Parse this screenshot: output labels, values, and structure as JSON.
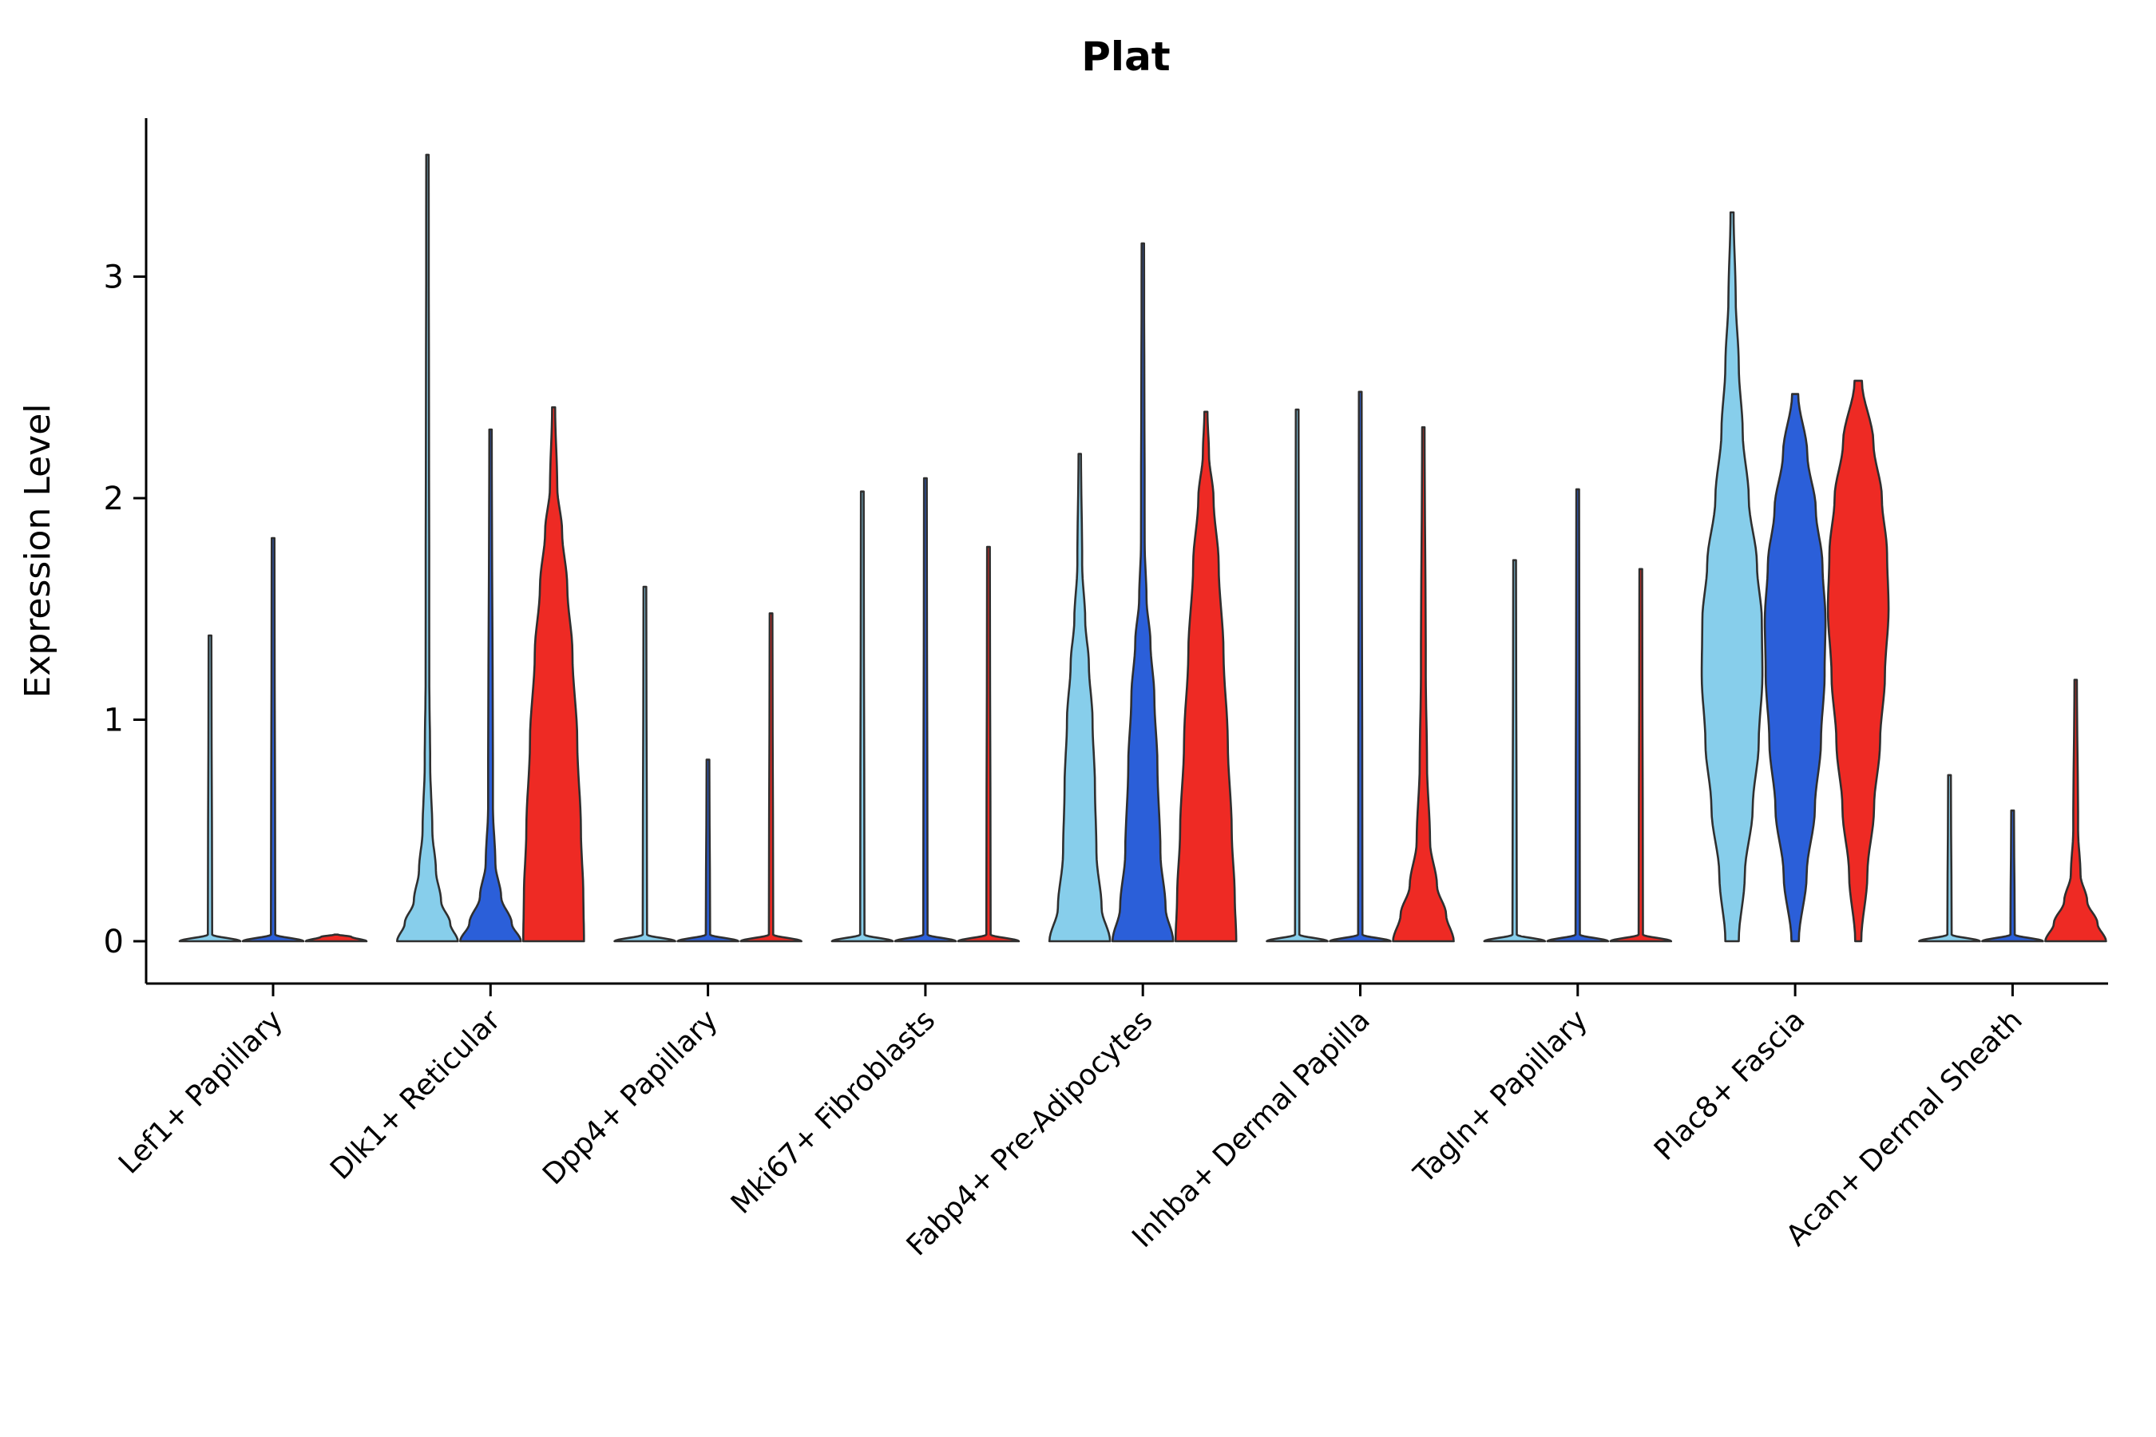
{
  "title": "Plat",
  "ylabel": "Expression Level",
  "chart_data": {
    "type": "violin",
    "title": "Plat",
    "xlabel": "",
    "ylabel": "Expression Level",
    "yticks": [
      0,
      1,
      2,
      3
    ],
    "ylim": [
      0,
      3.72
    ],
    "grid": false,
    "legend": "none",
    "series_colors": [
      "#87CEEB",
      "#2B5FD9",
      "#EE2A24"
    ],
    "stroke_color": "#2f2f2f",
    "axis_color": "#000000",
    "categories": [
      "Lef1+ Papillary",
      "Dlk1+ Reticular",
      "Dpp4+ Papillary",
      "Mki67+ Fibroblasts",
      "Fabp4+ Pre-Adipocytes",
      "Inhba+ Dermal Papilla",
      "Tagln+ Papillary",
      "Plac8+ Fascia",
      "Acan+ Dermal Sheath"
    ],
    "groups": [
      {
        "category": "Lef1+ Papillary",
        "violins": [
          {
            "max": 1.38,
            "shape": "spike",
            "profile": [
              [
                0,
                1.0
              ],
              [
                0.03,
                0.07
              ],
              [
                1.38,
                0.045
              ]
            ]
          },
          {
            "max": 1.82,
            "shape": "spike",
            "profile": [
              [
                0,
                1.0
              ],
              [
                0.03,
                0.07
              ],
              [
                1.82,
                0.045
              ]
            ]
          },
          {
            "max": 0.03,
            "shape": "flat",
            "profile": [
              [
                0,
                1.0
              ],
              [
                0.02,
                0.5
              ],
              [
                0.03,
                0.06
              ]
            ]
          }
        ]
      },
      {
        "category": "Dlk1+ Reticular",
        "violins": [
          {
            "max": 3.55,
            "shape": "body-spike",
            "profile": [
              [
                0,
                1.0
              ],
              [
                0.08,
                0.75
              ],
              [
                0.18,
                0.45
              ],
              [
                0.32,
                0.28
              ],
              [
                0.5,
                0.16
              ],
              [
                0.8,
                0.09
              ],
              [
                1.2,
                0.06
              ],
              [
                3.55,
                0.04
              ]
            ]
          },
          {
            "max": 2.31,
            "shape": "body-spike",
            "profile": [
              [
                0,
                1.0
              ],
              [
                0.08,
                0.7
              ],
              [
                0.2,
                0.35
              ],
              [
                0.35,
                0.16
              ],
              [
                0.6,
                0.08
              ],
              [
                2.31,
                0.04
              ]
            ]
          },
          {
            "max": 2.41,
            "shape": "body-spike",
            "profile": [
              [
                0,
                1.0
              ],
              [
                0.2,
                0.98
              ],
              [
                0.5,
                0.9
              ],
              [
                0.9,
                0.78
              ],
              [
                1.3,
                0.62
              ],
              [
                1.6,
                0.45
              ],
              [
                1.85,
                0.28
              ],
              [
                2.05,
                0.12
              ],
              [
                2.41,
                0.05
              ]
            ]
          }
        ]
      },
      {
        "category": "Dpp4+ Papillary",
        "violins": [
          {
            "max": 1.6,
            "shape": "spike",
            "profile": [
              [
                0,
                1.0
              ],
              [
                0.03,
                0.07
              ],
              [
                1.6,
                0.045
              ]
            ]
          },
          {
            "max": 0.82,
            "shape": "spike",
            "profile": [
              [
                0,
                1.0
              ],
              [
                0.03,
                0.07
              ],
              [
                0.82,
                0.045
              ]
            ]
          },
          {
            "max": 1.48,
            "shape": "spike",
            "profile": [
              [
                0,
                1.0
              ],
              [
                0.03,
                0.07
              ],
              [
                1.48,
                0.045
              ]
            ]
          }
        ]
      },
      {
        "category": "Mki67+ Fibroblasts",
        "violins": [
          {
            "max": 2.03,
            "shape": "spike",
            "profile": [
              [
                0,
                1.0
              ],
              [
                0.03,
                0.07
              ],
              [
                2.03,
                0.045
              ]
            ]
          },
          {
            "max": 2.09,
            "shape": "spike",
            "profile": [
              [
                0,
                1.0
              ],
              [
                0.03,
                0.07
              ],
              [
                2.09,
                0.045
              ]
            ]
          },
          {
            "max": 1.78,
            "shape": "spike",
            "profile": [
              [
                0,
                1.0
              ],
              [
                0.03,
                0.07
              ],
              [
                1.78,
                0.045
              ]
            ]
          }
        ]
      },
      {
        "category": "Fabp4+ Pre-Adipocytes",
        "violins": [
          {
            "max": 2.2,
            "shape": "body-spike",
            "profile": [
              [
                0,
                1.0
              ],
              [
                0.15,
                0.72
              ],
              [
                0.4,
                0.55
              ],
              [
                0.7,
                0.5
              ],
              [
                1.0,
                0.42
              ],
              [
                1.25,
                0.3
              ],
              [
                1.45,
                0.18
              ],
              [
                1.7,
                0.08
              ],
              [
                2.2,
                0.04
              ]
            ]
          },
          {
            "max": 3.15,
            "shape": "body-spike",
            "profile": [
              [
                0,
                1.0
              ],
              [
                0.15,
                0.75
              ],
              [
                0.4,
                0.58
              ],
              [
                0.8,
                0.48
              ],
              [
                1.1,
                0.38
              ],
              [
                1.35,
                0.25
              ],
              [
                1.55,
                0.12
              ],
              [
                1.8,
                0.06
              ],
              [
                3.15,
                0.04
              ]
            ]
          },
          {
            "max": 2.39,
            "shape": "body-spike",
            "profile": [
              [
                0,
                1.0
              ],
              [
                0.2,
                0.95
              ],
              [
                0.5,
                0.85
              ],
              [
                0.9,
                0.72
              ],
              [
                1.3,
                0.58
              ],
              [
                1.7,
                0.42
              ],
              [
                2.0,
                0.25
              ],
              [
                2.2,
                0.1
              ],
              [
                2.39,
                0.05
              ]
            ]
          }
        ]
      },
      {
        "category": "Inhba+ Dermal Papilla",
        "violins": [
          {
            "max": 2.4,
            "shape": "spike",
            "profile": [
              [
                0,
                1.0
              ],
              [
                0.03,
                0.07
              ],
              [
                2.4,
                0.045
              ]
            ]
          },
          {
            "max": 2.48,
            "shape": "spike",
            "profile": [
              [
                0,
                1.0
              ],
              [
                0.03,
                0.07
              ],
              [
                2.48,
                0.045
              ]
            ]
          },
          {
            "max": 2.32,
            "shape": "body-spike",
            "profile": [
              [
                0,
                1.0
              ],
              [
                0.12,
                0.75
              ],
              [
                0.25,
                0.45
              ],
              [
                0.45,
                0.22
              ],
              [
                0.8,
                0.12
              ],
              [
                1.2,
                0.08
              ],
              [
                2.32,
                0.04
              ]
            ]
          }
        ]
      },
      {
        "category": "Tagln+ Papillary",
        "violins": [
          {
            "max": 1.72,
            "shape": "spike",
            "profile": [
              [
                0,
                1.0
              ],
              [
                0.03,
                0.07
              ],
              [
                1.72,
                0.045
              ]
            ]
          },
          {
            "max": 2.04,
            "shape": "spike",
            "profile": [
              [
                0,
                1.0
              ],
              [
                0.03,
                0.07
              ],
              [
                2.04,
                0.045
              ]
            ]
          },
          {
            "max": 1.68,
            "shape": "spike",
            "profile": [
              [
                0,
                1.0
              ],
              [
                0.03,
                0.07
              ],
              [
                1.68,
                0.045
              ]
            ]
          }
        ]
      },
      {
        "category": "Plac8+ Fascia",
        "violins": [
          {
            "max": 3.29,
            "shape": "full",
            "profile": [
              [
                0,
                0.22
              ],
              [
                0.3,
                0.42
              ],
              [
                0.6,
                0.68
              ],
              [
                0.9,
                0.88
              ],
              [
                1.2,
                1.0
              ],
              [
                1.45,
                0.98
              ],
              [
                1.7,
                0.82
              ],
              [
                2.0,
                0.55
              ],
              [
                2.3,
                0.35
              ],
              [
                2.6,
                0.22
              ],
              [
                2.9,
                0.12
              ],
              [
                3.29,
                0.05
              ]
            ]
          },
          {
            "max": 2.47,
            "shape": "full",
            "profile": [
              [
                0,
                0.12
              ],
              [
                0.3,
                0.38
              ],
              [
                0.6,
                0.65
              ],
              [
                0.9,
                0.85
              ],
              [
                1.2,
                0.97
              ],
              [
                1.45,
                1.0
              ],
              [
                1.7,
                0.9
              ],
              [
                1.95,
                0.68
              ],
              [
                2.2,
                0.4
              ],
              [
                2.47,
                0.1
              ]
            ]
          },
          {
            "max": 2.53,
            "shape": "full",
            "profile": [
              [
                0,
                0.1
              ],
              [
                0.3,
                0.3
              ],
              [
                0.6,
                0.52
              ],
              [
                0.9,
                0.72
              ],
              [
                1.2,
                0.88
              ],
              [
                1.5,
                1.0
              ],
              [
                1.75,
                0.95
              ],
              [
                2.0,
                0.78
              ],
              [
                2.25,
                0.5
              ],
              [
                2.53,
                0.12
              ]
            ]
          }
        ]
      },
      {
        "category": "Acan+ Dermal Sheath",
        "violins": [
          {
            "max": 0.75,
            "shape": "spike",
            "profile": [
              [
                0,
                1.0
              ],
              [
                0.03,
                0.07
              ],
              [
                0.75,
                0.045
              ]
            ]
          },
          {
            "max": 0.59,
            "shape": "spike",
            "profile": [
              [
                0,
                1.0
              ],
              [
                0.03,
                0.07
              ],
              [
                0.59,
                0.045
              ]
            ]
          },
          {
            "max": 1.18,
            "shape": "body-spike",
            "profile": [
              [
                0,
                1.0
              ],
              [
                0.08,
                0.72
              ],
              [
                0.18,
                0.38
              ],
              [
                0.3,
                0.16
              ],
              [
                0.5,
                0.08
              ],
              [
                1.18,
                0.04
              ]
            ]
          }
        ]
      }
    ]
  }
}
